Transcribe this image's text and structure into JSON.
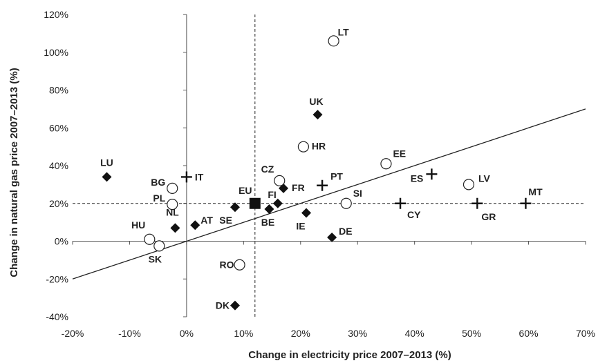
{
  "chart_data": {
    "type": "scatter",
    "title": "",
    "xlabel": "Change in electricity price  2007–2013 (%)",
    "ylabel": "Change in natural gas price 2007–2013 (%)",
    "xlim": [
      -20,
      70
    ],
    "ylim": [
      -40,
      120
    ],
    "x_ticks": [
      "-20%",
      "-10%",
      "0%",
      "10%",
      "20%",
      "30%",
      "40%",
      "50%",
      "60%",
      "70%"
    ],
    "y_ticks": [
      "-40%",
      "-20%",
      "0%",
      "20%",
      "40%",
      "60%",
      "80%",
      "100%",
      "120%"
    ],
    "grid": false,
    "reference_lines": {
      "x_dashed": 12,
      "y_dashed": 20
    },
    "trend_line": [
      [
        -20,
        -20
      ],
      [
        70,
        70
      ]
    ],
    "series": [
      {
        "marker": "diamond",
        "points": [
          {
            "label": "LU",
            "x": -14,
            "y": 34
          },
          {
            "label": "UK",
            "x": 23,
            "y": 67
          },
          {
            "label": "NL",
            "x": -2,
            "y": 7
          },
          {
            "label": "AT",
            "x": 1.5,
            "y": 8.5
          },
          {
            "label": "SE",
            "x": 8.5,
            "y": 18
          },
          {
            "label": "BE",
            "x": 14.5,
            "y": 17
          },
          {
            "label": "FI",
            "x": 16,
            "y": 20
          },
          {
            "label": "FR",
            "x": 17,
            "y": 28
          },
          {
            "label": "IE",
            "x": 21,
            "y": 15
          },
          {
            "label": "DE",
            "x": 25.5,
            "y": 2
          },
          {
            "label": "DK",
            "x": 8.5,
            "y": -34
          }
        ]
      },
      {
        "marker": "circle",
        "points": [
          {
            "label": "LT",
            "x": 25.8,
            "y": 106
          },
          {
            "label": "HR",
            "x": 20.5,
            "y": 50
          },
          {
            "label": "EE",
            "x": 35,
            "y": 41
          },
          {
            "label": "LV",
            "x": 49.5,
            "y": 30
          },
          {
            "label": "CZ",
            "x": 16.3,
            "y": 32
          },
          {
            "label": "SI",
            "x": 28,
            "y": 20
          },
          {
            "label": "BG",
            "x": -2.5,
            "y": 28
          },
          {
            "label": "PL",
            "x": -2.5,
            "y": 19.5
          },
          {
            "label": "HU",
            "x": -6.5,
            "y": 1
          },
          {
            "label": "SK",
            "x": -4.8,
            "y": -2.5
          },
          {
            "label": "RO",
            "x": 9.3,
            "y": -12.5
          }
        ]
      },
      {
        "marker": "plus",
        "points": [
          {
            "label": "IT",
            "x": 0,
            "y": 34
          },
          {
            "label": "PT",
            "x": 23.8,
            "y": 29.5
          },
          {
            "label": "ES",
            "x": 43,
            "y": 35.5
          },
          {
            "label": "CY",
            "x": 37.5,
            "y": 20
          },
          {
            "label": "GR",
            "x": 51,
            "y": 20
          },
          {
            "label": "MT",
            "x": 59.5,
            "y": 20
          }
        ]
      },
      {
        "marker": "square",
        "points": [
          {
            "label": "EU",
            "x": 12,
            "y": 20
          }
        ]
      }
    ]
  }
}
